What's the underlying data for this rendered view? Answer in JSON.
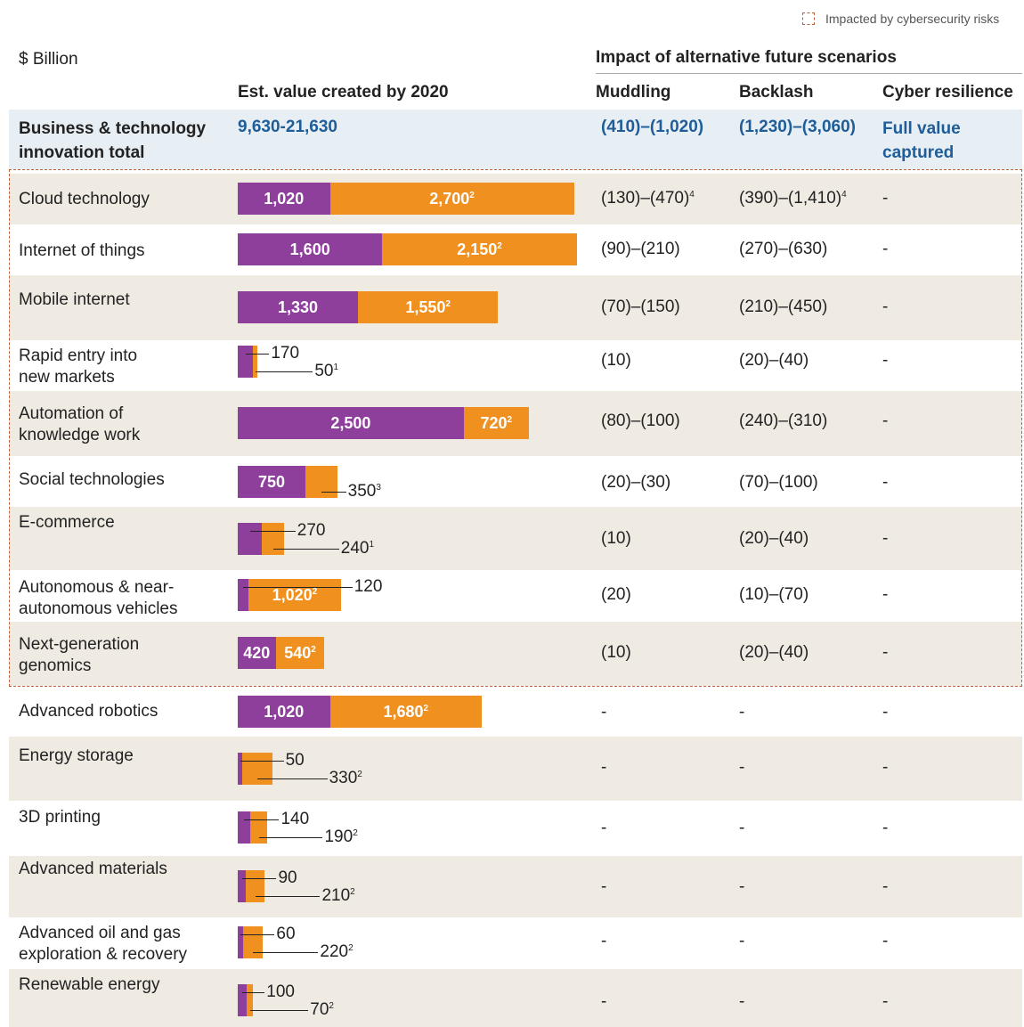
{
  "chart_data": {
    "type": "bar",
    "stacked": true,
    "orientation": "horizontal",
    "legend": "Impacted by cybersecurity risks",
    "unit": "$ Billion",
    "scenario_heading": "Impact of alternative future scenarios",
    "columns": [
      "Est. value created by 2020",
      "Muddling",
      "Backlash",
      "Cyber resilience"
    ],
    "total": {
      "label": "Business & technology\ninnovation total",
      "value": "9,630-21,630",
      "muddling": "(410)–(1,020)",
      "backlash": "(1,230)–(3,060)",
      "cyber_resilience": "Full value\ncaptured"
    },
    "categories": [
      "Cloud technology",
      "Internet of things",
      "Mobile internet",
      "Rapid entry into\nnew markets",
      "Automation of\nknowledge work",
      "Social technologies",
      "E-commerce",
      "Autonomous & near-\nautonomous vehicles",
      "Next-generation\ngenomics",
      "Advanced robotics",
      "Energy storage",
      "3D printing",
      "Advanced materials",
      "Advanced oil and gas\nexploration & recovery",
      "Renewable energy"
    ],
    "impacted": [
      true,
      true,
      true,
      true,
      true,
      true,
      true,
      true,
      true,
      false,
      false,
      false,
      false,
      false,
      false
    ],
    "series": [
      {
        "color": "#8e3f9b",
        "values": [
          1020,
          1600,
          1330,
          170,
          2500,
          750,
          270,
          120,
          420,
          1020,
          50,
          140,
          90,
          60,
          100
        ],
        "value_labels": [
          "1,020",
          "1,600",
          "1,330",
          "170",
          "2,500",
          "750",
          "270",
          "120",
          "420",
          "1,020",
          "50",
          "140",
          "90",
          "60",
          "100"
        ]
      },
      {
        "color": "#f0901e",
        "values": [
          2700,
          2150,
          1550,
          50,
          720,
          350,
          240,
          1020,
          540,
          1680,
          330,
          190,
          210,
          220,
          70
        ],
        "value_labels": [
          "2,700",
          "2,150",
          "1,550",
          "50",
          "720",
          "350",
          "240",
          "1,020",
          "540",
          "1,680",
          "330",
          "190",
          "210",
          "220",
          "70"
        ],
        "footnotes": [
          "2",
          "2",
          "2",
          "1",
          "2",
          "3",
          "1",
          "2",
          "2",
          "2",
          "2",
          "2",
          "2",
          "2",
          "2"
        ]
      }
    ],
    "muddling": [
      "(130)–(470)",
      "(90)–(210)",
      "(70)–(150)",
      "(10)",
      "(80)–(100)",
      "(20)–(30)",
      "(10)",
      "(20)",
      "(10)",
      "-",
      "-",
      "-",
      "-",
      "-",
      "-"
    ],
    "backlash": [
      "(390)–(1,410)",
      "(270)–(630)",
      "(210)–(450)",
      "(20)–(40)",
      "(240)–(310)",
      "(70)–(100)",
      "(20)–(40)",
      "(10)–(70)",
      "(20)–(40)",
      "-",
      "-",
      "-",
      "-",
      "-",
      "-"
    ],
    "cyber_resilience": [
      "-",
      "-",
      "-",
      "-",
      "-",
      "-",
      "-",
      "-",
      "-",
      "-",
      "-",
      "-",
      "-",
      "-",
      "-"
    ],
    "impact_notes": [
      "4",
      null,
      null,
      null,
      null,
      null,
      null,
      null,
      null,
      null,
      null,
      null,
      null,
      null,
      null
    ]
  }
}
